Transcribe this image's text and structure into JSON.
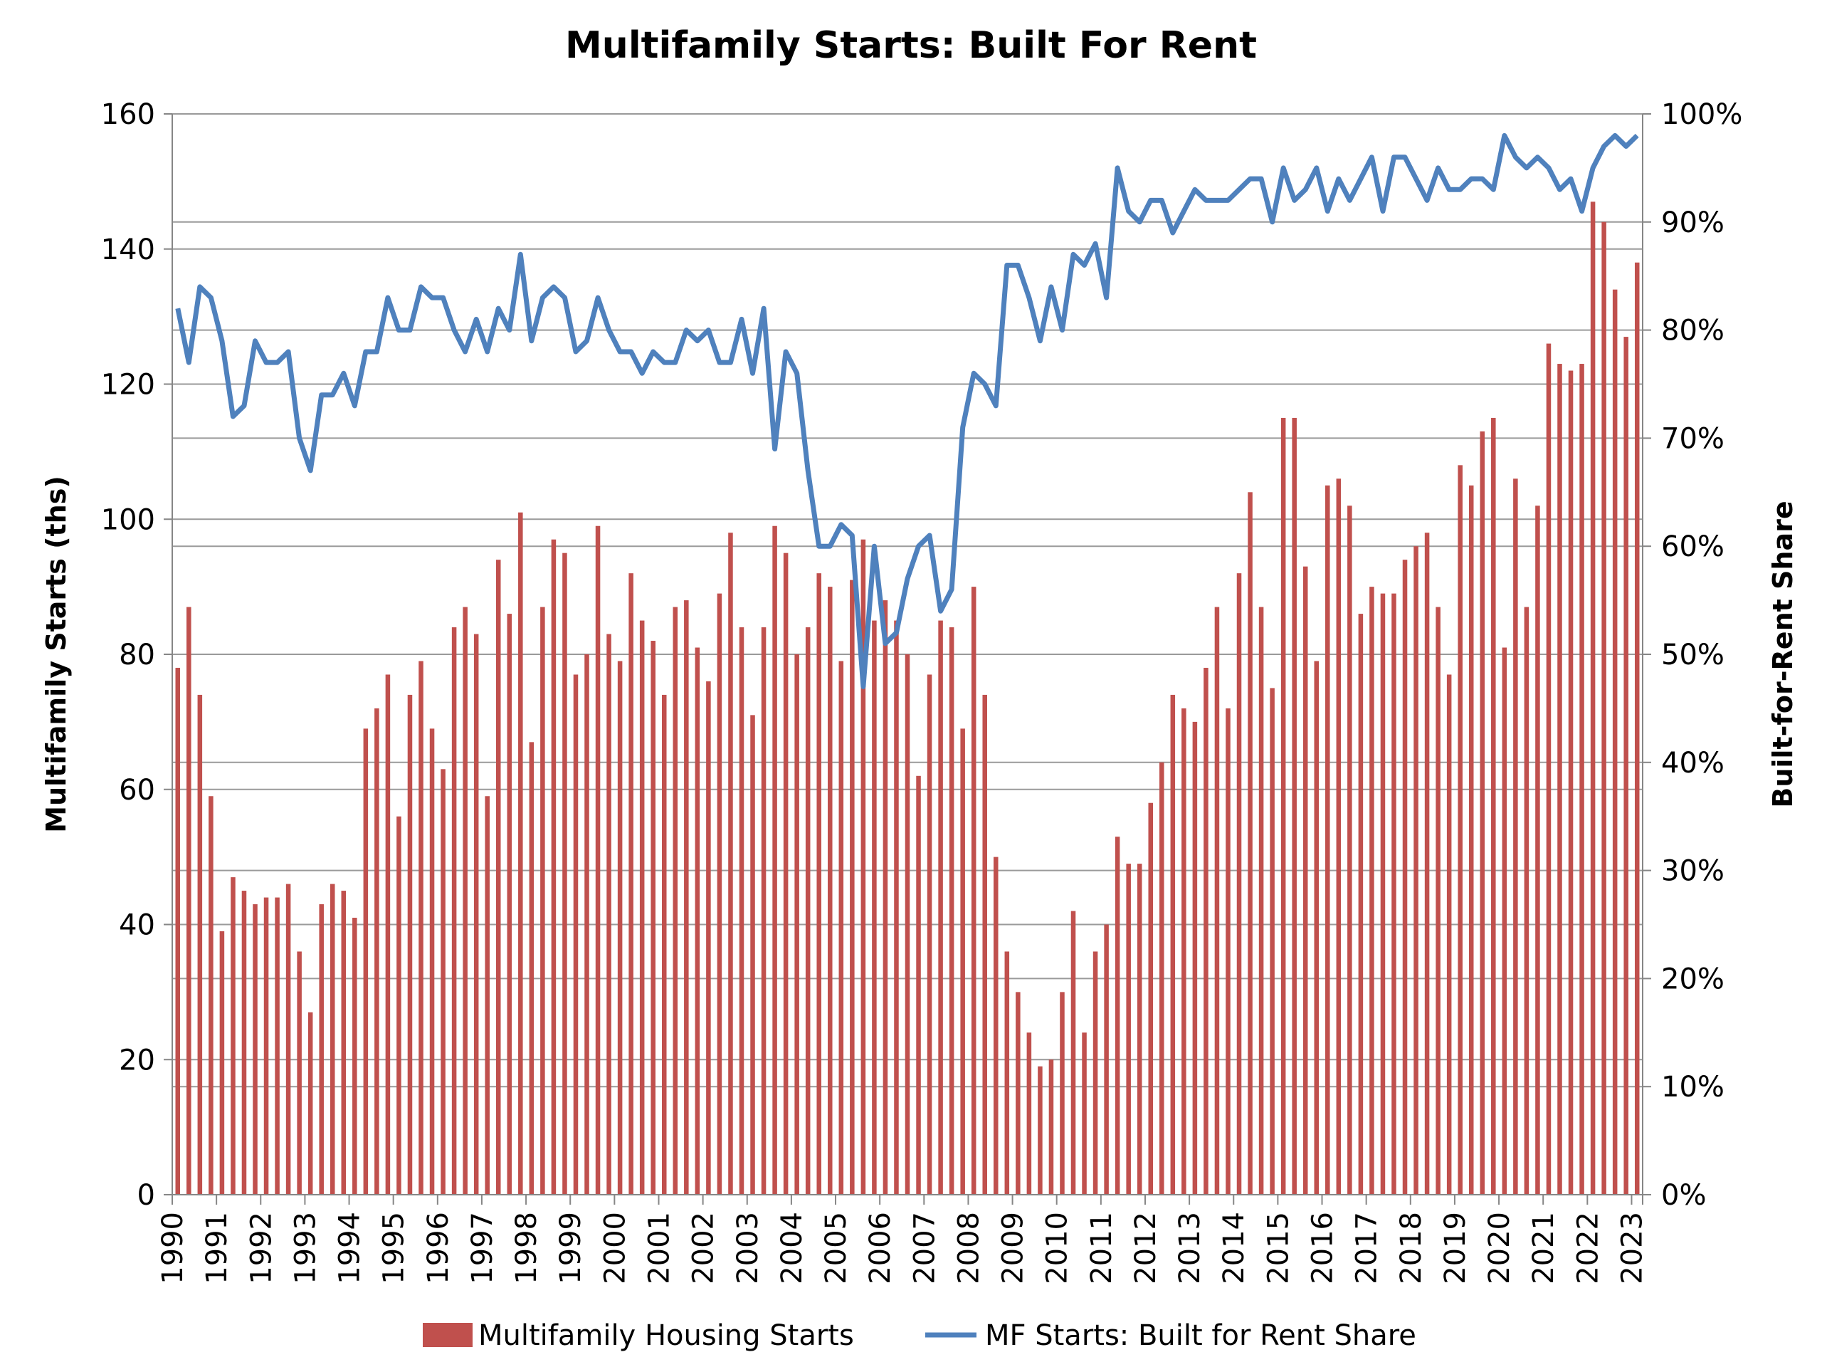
{
  "chart_data": {
    "type": "bar",
    "title": "Multifamily Starts: Built For Rent",
    "xlabel": "",
    "ylabel": "Multifamily Starts (ths)",
    "y2label": "Built-for-Rent Share",
    "ylim": [
      0,
      160
    ],
    "y2lim": [
      0,
      100
    ],
    "yticks": [
      "0",
      "20",
      "40",
      "60",
      "80",
      "100",
      "120",
      "140",
      "160"
    ],
    "y2ticks": [
      "0%",
      "10%",
      "20%",
      "30%",
      "40%",
      "50%",
      "60%",
      "70%",
      "80%",
      "90%",
      "100%"
    ],
    "grid": "horizontal",
    "legend_position": "bottom",
    "years": [
      "1990",
      "1991",
      "1992",
      "1993",
      "1994",
      "1995",
      "1996",
      "1997",
      "1998",
      "1999",
      "2000",
      "2001",
      "2002",
      "2003",
      "2004",
      "2005",
      "2006",
      "2007",
      "2008",
      "2009",
      "2010",
      "2011",
      "2012",
      "2013",
      "2014",
      "2015",
      "2016",
      "2017",
      "2018",
      "2019",
      "2020",
      "2021",
      "2022",
      "2023"
    ],
    "periods_per_year": 4,
    "series": [
      {
        "name": "Multifamily Housing Starts",
        "type": "bar",
        "axis": "left",
        "color": "#C0504D",
        "values": [
          78,
          87,
          74,
          59,
          39,
          47,
          45,
          43,
          44,
          44,
          46,
          36,
          27,
          43,
          46,
          45,
          41,
          69,
          72,
          77,
          56,
          74,
          79,
          69,
          63,
          84,
          87,
          83,
          59,
          94,
          86,
          101,
          67,
          87,
          97,
          95,
          77,
          80,
          99,
          83,
          79,
          92,
          85,
          82,
          74,
          87,
          88,
          81,
          76,
          89,
          98,
          84,
          71,
          84,
          99,
          95,
          80,
          84,
          92,
          90,
          79,
          91,
          97,
          85,
          88,
          85,
          80,
          62,
          77,
          85,
          84,
          69,
          90,
          74,
          50,
          36,
          30,
          24,
          19,
          20,
          30,
          42,
          24,
          36,
          40,
          53,
          49,
          49,
          58,
          64,
          74,
          72,
          70,
          78,
          87,
          72,
          92,
          104,
          87,
          75,
          115,
          115,
          93,
          79,
          105,
          106,
          102,
          86,
          90,
          89,
          89,
          94,
          96,
          98,
          87,
          77,
          108,
          105,
          113,
          115,
          81,
          106,
          87,
          102,
          126,
          123,
          122,
          123,
          147,
          144,
          134,
          127,
          138
        ]
      },
      {
        "name": "MF Starts: Built for Rent Share",
        "type": "line",
        "axis": "right",
        "color": "#4F81BD",
        "values": [
          82,
          77,
          84,
          83,
          79,
          72,
          73,
          79,
          77,
          77,
          78,
          70,
          67,
          74,
          74,
          76,
          73,
          78,
          78,
          83,
          80,
          80,
          84,
          83,
          83,
          80,
          78,
          81,
          78,
          82,
          80,
          87,
          79,
          83,
          84,
          83,
          78,
          79,
          83,
          80,
          78,
          78,
          76,
          78,
          77,
          77,
          80,
          79,
          80,
          77,
          77,
          81,
          76,
          82,
          69,
          78,
          76,
          67,
          60,
          60,
          62,
          61,
          47,
          60,
          51,
          52,
          57,
          60,
          61,
          54,
          56,
          71,
          76,
          75,
          73,
          86,
          86,
          83,
          79,
          84,
          80,
          87,
          86,
          88,
          83,
          95,
          91,
          90,
          92,
          92,
          89,
          91,
          93,
          92,
          92,
          92,
          93,
          94,
          94,
          90,
          95,
          92,
          93,
          95,
          91,
          94,
          92,
          94,
          96,
          91,
          96,
          96,
          94,
          92,
          95,
          93,
          93,
          94,
          94,
          93,
          98,
          96,
          95,
          96,
          95,
          93,
          94,
          91,
          95,
          97,
          98,
          97,
          98
        ]
      }
    ]
  }
}
